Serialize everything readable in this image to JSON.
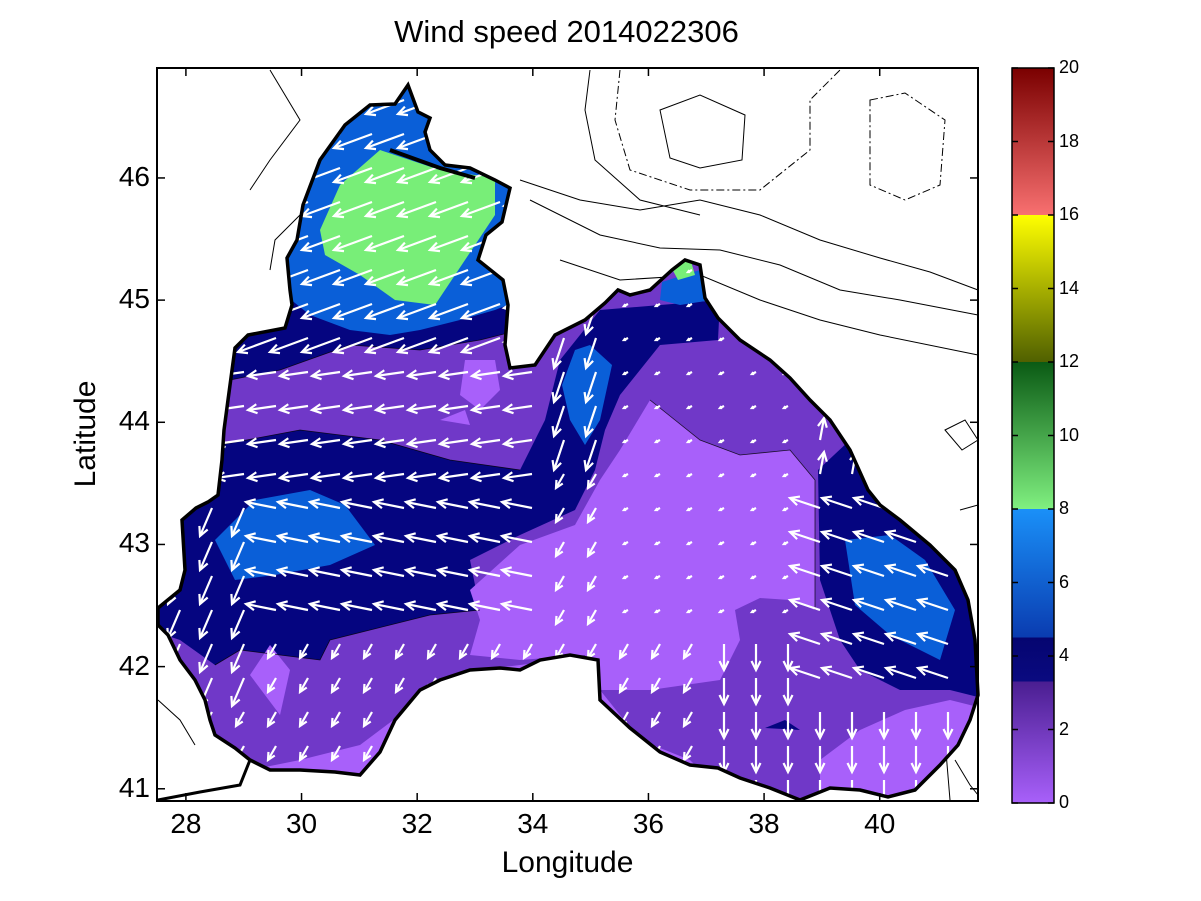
{
  "title": "Wind speed 2014022306",
  "xlabel": "Longitude",
  "ylabel": "Latitude",
  "x_ticks": [
    "28",
    "30",
    "32",
    "34",
    "36",
    "38",
    "40"
  ],
  "y_ticks": [
    "41",
    "42",
    "43",
    "44",
    "45",
    "46"
  ],
  "colorbar": {
    "ticks": [
      "0",
      "2",
      "4",
      "6",
      "8",
      "10",
      "12",
      "14",
      "16",
      "18",
      "20"
    ],
    "range": [
      0,
      20
    ],
    "bands": [
      {
        "from": 0,
        "to": 3.3,
        "color_from": "#a860fa",
        "color_to": "#4a1e91"
      },
      {
        "from": 3.3,
        "to": 4.5,
        "color_from": "#0a0a80",
        "color_to": "#050570"
      },
      {
        "from": 4.5,
        "to": 8,
        "color_from": "#0a3cb0",
        "color_to": "#1a90f8"
      },
      {
        "from": 8,
        "to": 12,
        "color_from": "#80f080",
        "color_to": "#0a5a14"
      },
      {
        "from": 12,
        "to": 16,
        "color_from": "#506000",
        "color_to": "#ffff00"
      },
      {
        "from": 16,
        "to": 20,
        "color_from": "#f87070",
        "color_to": "#7a0000"
      }
    ]
  },
  "chart_data": {
    "type": "heatmap",
    "title": "Wind speed 2014022306",
    "xlabel": "Longitude",
    "ylabel": "Latitude",
    "xlim": [
      27.5,
      41.7
    ],
    "ylim": [
      40.9,
      46.9
    ],
    "colorbar_range": [
      0,
      20
    ],
    "colors": {
      "speed_0_2": "#a860fa",
      "speed_2_3": "#7038c8",
      "speed_3_4": "#050580",
      "speed_5_7": "#0a5fd8",
      "speed_7_9": "#78ee78",
      "arrows": "#ffffff",
      "coastline": "#000000"
    },
    "regions": [
      {
        "speed_band": "7-9",
        "area": "northwest shelf near 31-33E, 45.3-46.1N"
      },
      {
        "speed_band": "5-7",
        "area": "northwest shelf 29.5-33.5E, 44.9-46.5N"
      },
      {
        "speed_band": "5-7",
        "area": "western basin near 29-31E, 42.8-43.3N"
      },
      {
        "speed_band": "5-7",
        "area": "eastern basin near 39.5-41.5E, 42.2-43.0N"
      },
      {
        "speed_band": "5-7",
        "area": "south of Crimea near 35E, 44-44.5N"
      },
      {
        "speed_band": "0-2",
        "area": "central-southern basin 35.5-39E, 41.5-44N"
      }
    ],
    "wind_field_note": "strong easterly winds (4-9 m/s) across western and northwestern basin; weak variable winds (0-2 m/s) in central-southern basin; northwesterly winds near southern coast"
  }
}
